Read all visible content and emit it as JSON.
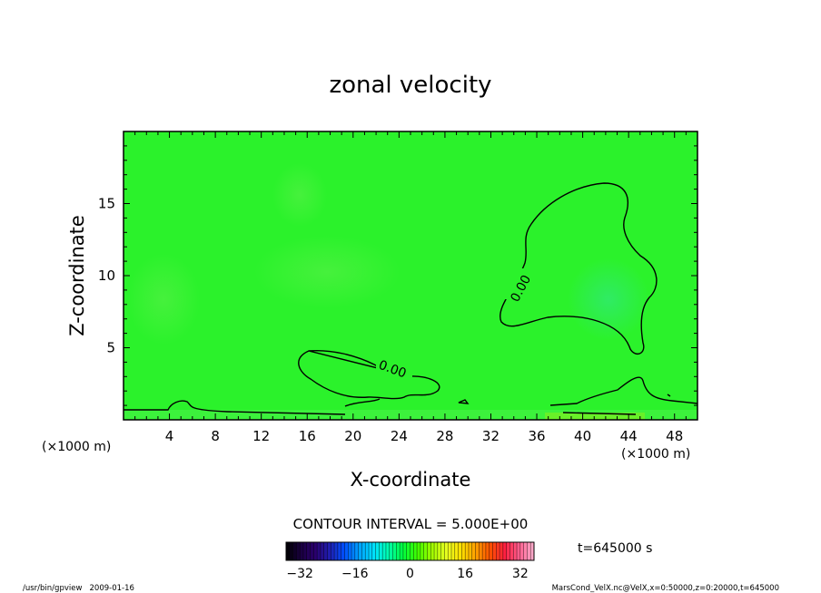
{
  "chart_data": {
    "type": "heatmap",
    "title": "zonal velocity",
    "xlabel": "X-coordinate",
    "ylabel": "Z-coordinate",
    "x_unit": "(×1000 m)",
    "y_unit": "(×1000 m)",
    "xlim": [
      0,
      50
    ],
    "ylim": [
      0,
      20
    ],
    "x_ticks": [
      "4",
      "8",
      "12",
      "16",
      "20",
      "24",
      "28",
      "32",
      "36",
      "40",
      "44",
      "48"
    ],
    "y_ticks": [
      "5",
      "10",
      "15"
    ],
    "contour_interval_label": "CONTOUR INTERVAL = 5.000E+00",
    "contour_labels": [
      "0.00",
      "0.00"
    ],
    "time_label": "t=645000 s",
    "colorbar": {
      "min": -36,
      "max": 36,
      "ticks": [
        "−32",
        "−16",
        "0",
        "16",
        "32"
      ],
      "colors": [
        "#000000",
        "#1a0040",
        "#2a006e",
        "#1f1fb0",
        "#0050ff",
        "#00a0ff",
        "#00e0ff",
        "#00ffb0",
        "#00ff40",
        "#40ff00",
        "#a0ff00",
        "#e8ff20",
        "#ffe000",
        "#ffa000",
        "#ff5000",
        "#ff2040",
        "#ff6090",
        "#ffb0d0"
      ]
    },
    "field_color": "#2bff2b"
  },
  "footer": {
    "left": "/usr/bin/gpview   2009-01-16",
    "right": "MarsCond_VelX.nc@VelX,x=0:50000,z=0:20000,t=645000"
  }
}
